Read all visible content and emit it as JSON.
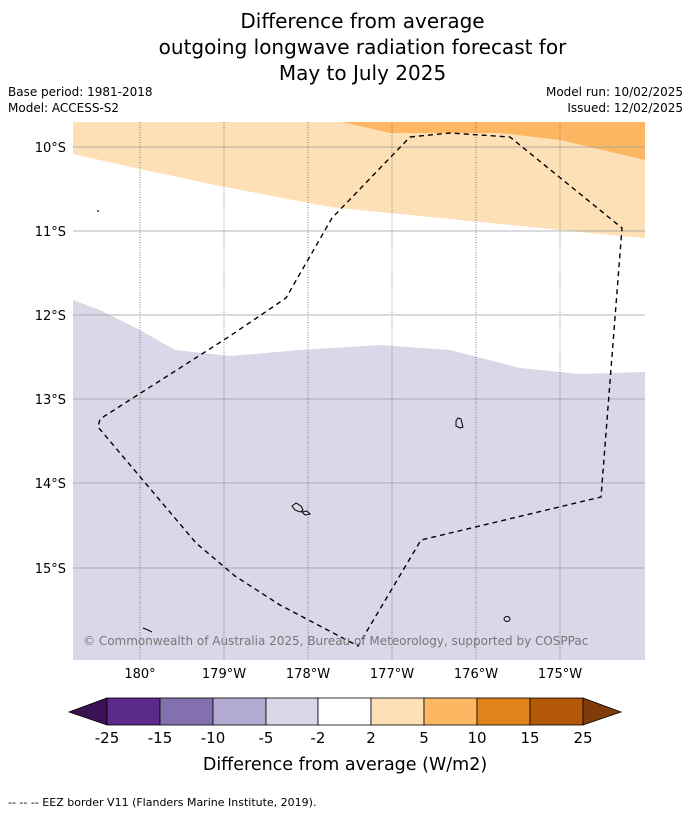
{
  "title": {
    "line1": "Difference from average",
    "line2": "outgoing longwave radiation forecast for",
    "line3": "May to July 2025"
  },
  "meta": {
    "base_period": "Base period: 1981-2018",
    "model": "Model: ACCESS-S2",
    "model_run": "Model run: 10/02/2025",
    "issued": "Issued: 12/02/2025"
  },
  "map": {
    "lat_labels": [
      "10°S",
      "11°S",
      "12°S",
      "13°S",
      "14°S",
      "15°S"
    ],
    "lon_labels": [
      "180°",
      "179°W",
      "178°W",
      "177°W",
      "176°W",
      "175°W"
    ],
    "copyright": "© Commonwealth of Australia 2025, Bureau of Meteorology, supported by COSPPac"
  },
  "colorbar": {
    "label": "Difference from average (W/m2)",
    "ticks": [
      "-25",
      "-15",
      "-10",
      "-5",
      "-2",
      "2",
      "5",
      "10",
      "15",
      "25"
    ],
    "colors": {
      "below_-25": "#3b1253",
      "-25_-15": "#5b2a8b",
      "-15_-10": "#8271ae",
      "-10_-5": "#b3aad2",
      "-5_-2": "#d8d8e9",
      "-2_2": "#ffffff",
      "2_5": "#fde0b6",
      "5_10": "#fdb762",
      "10_15": "#e08419",
      "15_25": "#b35806",
      "above_25": "#7f3b08"
    }
  },
  "footer": {
    "legend_text": "--  --  -- EEZ border V11 (Flanders Marine Institute, 2019)."
  }
}
